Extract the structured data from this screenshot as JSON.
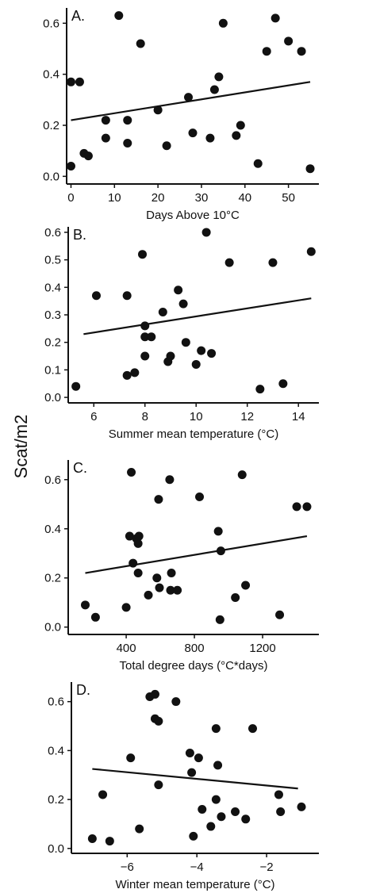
{
  "y_axis_title": "Scat/m2",
  "chart_data": [
    {
      "type": "scatter",
      "panel_label": "A.",
      "xlabel": "Days Above 10°C",
      "ylabel": "Scat/m2",
      "xlim": [
        -1,
        57
      ],
      "ylim": [
        -0.03,
        0.66
      ],
      "xticks": [
        0,
        10,
        20,
        30,
        40,
        50
      ],
      "yticks": [
        0.0,
        0.2,
        0.4,
        0.6
      ],
      "grid": false,
      "points": [
        {
          "x": 0,
          "y": 0.04
        },
        {
          "x": 0,
          "y": 0.37
        },
        {
          "x": 2,
          "y": 0.37
        },
        {
          "x": 3,
          "y": 0.09
        },
        {
          "x": 4,
          "y": 0.08
        },
        {
          "x": 8,
          "y": 0.15
        },
        {
          "x": 8,
          "y": 0.22
        },
        {
          "x": 11,
          "y": 0.63
        },
        {
          "x": 13,
          "y": 0.13
        },
        {
          "x": 13,
          "y": 0.22
        },
        {
          "x": 16,
          "y": 0.52
        },
        {
          "x": 20,
          "y": 0.26
        },
        {
          "x": 22,
          "y": 0.12
        },
        {
          "x": 27,
          "y": 0.31
        },
        {
          "x": 28,
          "y": 0.17
        },
        {
          "x": 32,
          "y": 0.15
        },
        {
          "x": 33,
          "y": 0.34
        },
        {
          "x": 34,
          "y": 0.39
        },
        {
          "x": 35,
          "y": 0.6
        },
        {
          "x": 38,
          "y": 0.16
        },
        {
          "x": 39,
          "y": 0.2
        },
        {
          "x": 43,
          "y": 0.05
        },
        {
          "x": 45,
          "y": 0.49
        },
        {
          "x": 47,
          "y": 0.62
        },
        {
          "x": 50,
          "y": 0.53
        },
        {
          "x": 53,
          "y": 0.49
        },
        {
          "x": 55,
          "y": 0.03
        }
      ],
      "trend_line": {
        "x": [
          0,
          55
        ],
        "y": [
          0.22,
          0.37
        ]
      }
    },
    {
      "type": "scatter",
      "panel_label": "B.",
      "xlabel": "Summer mean temperature (°C)",
      "ylabel": "Scat/m2",
      "xlim": [
        5,
        14.8
      ],
      "ylim": [
        -0.02,
        0.62
      ],
      "xticks": [
        6,
        8,
        10,
        12,
        14
      ],
      "yticks": [
        0.0,
        0.1,
        0.2,
        0.3,
        0.4,
        0.5,
        0.6
      ],
      "grid": false,
      "points": [
        {
          "x": 5.3,
          "y": 0.04
        },
        {
          "x": 6.1,
          "y": 0.37
        },
        {
          "x": 7.3,
          "y": 0.37
        },
        {
          "x": 7.3,
          "y": 0.08
        },
        {
          "x": 7.6,
          "y": 0.09
        },
        {
          "x": 7.9,
          "y": 0.52
        },
        {
          "x": 8.0,
          "y": 0.26
        },
        {
          "x": 8.0,
          "y": 0.22
        },
        {
          "x": 8.0,
          "y": 0.15
        },
        {
          "x": 8.25,
          "y": 0.22
        },
        {
          "x": 8.7,
          "y": 0.31
        },
        {
          "x": 8.9,
          "y": 0.13
        },
        {
          "x": 9.0,
          "y": 0.15
        },
        {
          "x": 9.3,
          "y": 0.39
        },
        {
          "x": 9.5,
          "y": 0.34
        },
        {
          "x": 9.6,
          "y": 0.2
        },
        {
          "x": 10.0,
          "y": 0.12
        },
        {
          "x": 10.2,
          "y": 0.17
        },
        {
          "x": 10.4,
          "y": 0.6
        },
        {
          "x": 10.6,
          "y": 0.16
        },
        {
          "x": 11.3,
          "y": 0.49
        },
        {
          "x": 12.5,
          "y": 0.03
        },
        {
          "x": 13.0,
          "y": 0.49
        },
        {
          "x": 13.4,
          "y": 0.05
        },
        {
          "x": 14.5,
          "y": 0.53
        }
      ],
      "trend_line": {
        "x": [
          5.6,
          14.5
        ],
        "y": [
          0.23,
          0.36
        ]
      }
    },
    {
      "type": "scatter",
      "panel_label": "C.",
      "xlabel": "Total degree days (°C*days)",
      "ylabel": "Scat/m2",
      "xlim": [
        60,
        1530
      ],
      "ylim": [
        -0.03,
        0.68
      ],
      "xticks": [
        400,
        800,
        1200
      ],
      "yticks": [
        0.0,
        0.2,
        0.4,
        0.6
      ],
      "grid": false,
      "points": [
        {
          "x": 160,
          "y": 0.09
        },
        {
          "x": 220,
          "y": 0.04
        },
        {
          "x": 400,
          "y": 0.08
        },
        {
          "x": 420,
          "y": 0.37
        },
        {
          "x": 430,
          "y": 0.63
        },
        {
          "x": 440,
          "y": 0.26
        },
        {
          "x": 460,
          "y": 0.36
        },
        {
          "x": 470,
          "y": 0.22
        },
        {
          "x": 470,
          "y": 0.34
        },
        {
          "x": 475,
          "y": 0.37
        },
        {
          "x": 530,
          "y": 0.13
        },
        {
          "x": 580,
          "y": 0.2
        },
        {
          "x": 590,
          "y": 0.52
        },
        {
          "x": 595,
          "y": 0.16
        },
        {
          "x": 655,
          "y": 0.6
        },
        {
          "x": 660,
          "y": 0.15
        },
        {
          "x": 665,
          "y": 0.22
        },
        {
          "x": 700,
          "y": 0.15
        },
        {
          "x": 830,
          "y": 0.53
        },
        {
          "x": 940,
          "y": 0.39
        },
        {
          "x": 950,
          "y": 0.03
        },
        {
          "x": 955,
          "y": 0.31
        },
        {
          "x": 1040,
          "y": 0.12
        },
        {
          "x": 1080,
          "y": 0.62
        },
        {
          "x": 1100,
          "y": 0.17
        },
        {
          "x": 1300,
          "y": 0.05
        },
        {
          "x": 1400,
          "y": 0.49
        },
        {
          "x": 1460,
          "y": 0.49
        }
      ],
      "trend_line": {
        "x": [
          160,
          1460
        ],
        "y": [
          0.22,
          0.37
        ]
      }
    },
    {
      "type": "scatter",
      "panel_label": "D.",
      "xlabel": "Winter mean temperature (°C)",
      "ylabel": "Scat/m2",
      "xlim": [
        -7.6,
        -0.5
      ],
      "ylim": [
        -0.02,
        0.68
      ],
      "xticks": [
        -6,
        -4,
        -2
      ],
      "yticks": [
        0.0,
        0.2,
        0.4,
        0.6
      ],
      "grid": false,
      "points": [
        {
          "x": -7.0,
          "y": 0.04
        },
        {
          "x": -6.7,
          "y": 0.22
        },
        {
          "x": -6.5,
          "y": 0.03
        },
        {
          "x": -5.9,
          "y": 0.37
        },
        {
          "x": -5.65,
          "y": 0.08
        },
        {
          "x": -5.35,
          "y": 0.62
        },
        {
          "x": -5.2,
          "y": 0.63
        },
        {
          "x": -5.2,
          "y": 0.53
        },
        {
          "x": -5.1,
          "y": 0.52
        },
        {
          "x": -5.1,
          "y": 0.26
        },
        {
          "x": -4.6,
          "y": 0.6
        },
        {
          "x": -4.2,
          "y": 0.39
        },
        {
          "x": -4.15,
          "y": 0.31
        },
        {
          "x": -4.1,
          "y": 0.05
        },
        {
          "x": -3.95,
          "y": 0.37
        },
        {
          "x": -3.85,
          "y": 0.16
        },
        {
          "x": -3.6,
          "y": 0.09
        },
        {
          "x": -3.45,
          "y": 0.2
        },
        {
          "x": -3.45,
          "y": 0.49
        },
        {
          "x": -3.4,
          "y": 0.34
        },
        {
          "x": -3.3,
          "y": 0.13
        },
        {
          "x": -2.9,
          "y": 0.15
        },
        {
          "x": -2.6,
          "y": 0.12
        },
        {
          "x": -2.4,
          "y": 0.49
        },
        {
          "x": -1.65,
          "y": 0.22
        },
        {
          "x": -1.6,
          "y": 0.15
        },
        {
          "x": -1.0,
          "y": 0.17
        }
      ],
      "trend_line": {
        "x": [
          -7.0,
          -1.1
        ],
        "y": [
          0.325,
          0.245
        ]
      }
    }
  ]
}
